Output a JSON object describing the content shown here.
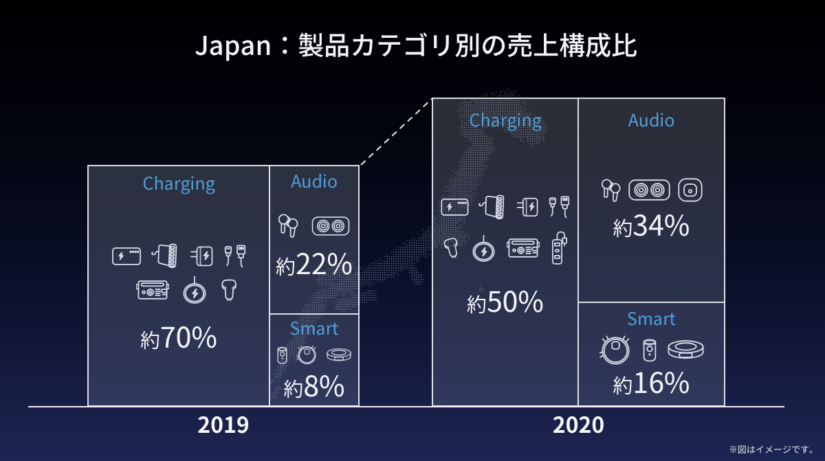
{
  "slide": {
    "title": "Japan：製品カテゴリ別の売上構成比",
    "note": "※図はイメージです。"
  },
  "chart_data": {
    "type": "bar",
    "variant": "mosaic-composition",
    "title": "Japan：製品カテゴリ別の売上構成比",
    "categories": [
      "2019",
      "2020"
    ],
    "series": [
      {
        "name": "Charging",
        "values": [
          70,
          50
        ],
        "labels": [
          "約70%",
          "約50%"
        ]
      },
      {
        "name": "Audio",
        "values": [
          22,
          34
        ],
        "labels": [
          "約22%",
          "約34%"
        ]
      },
      {
        "name": "Smart",
        "values": [
          8,
          16
        ],
        "labels": [
          "約8%",
          "約16%"
        ]
      }
    ],
    "value_unit": "%",
    "value_prefix": "約",
    "xlabel": "",
    "ylabel": "",
    "legend": "none",
    "note": "※図はイメージです。"
  },
  "groups": [
    {
      "year": "2019",
      "charging": {
        "label": "Charging",
        "prefix": "約",
        "value": "70%"
      },
      "audio": {
        "label": "Audio",
        "prefix": "約",
        "value": "22%"
      },
      "smart": {
        "label": "Smart",
        "prefix": "約",
        "value": "8%"
      }
    },
    {
      "year": "2020",
      "charging": {
        "label": "Charging",
        "prefix": "約",
        "value": "50%"
      },
      "audio": {
        "label": "Audio",
        "prefix": "約",
        "value": "34%"
      },
      "smart": {
        "label": "Smart",
        "prefix": "約",
        "value": "16%"
      }
    }
  ],
  "icons": {
    "charging": [
      "power-bank",
      "multiport-charger",
      "wall-charger",
      "usb-cables",
      "car-charger",
      "wireless-charger",
      "power-station",
      "usb-hub"
    ],
    "audio": [
      "earbuds",
      "speaker",
      "square-speaker"
    ],
    "smart": [
      "camera-cylinder",
      "robot-vacuum-top",
      "robot-vacuum-side"
    ]
  },
  "colors": {
    "category_label": "#4f9fdb",
    "value_text": "#f3f4f7",
    "box_border": "#edeff4",
    "background_top": "#000002",
    "background_bottom": "#1c2452"
  }
}
